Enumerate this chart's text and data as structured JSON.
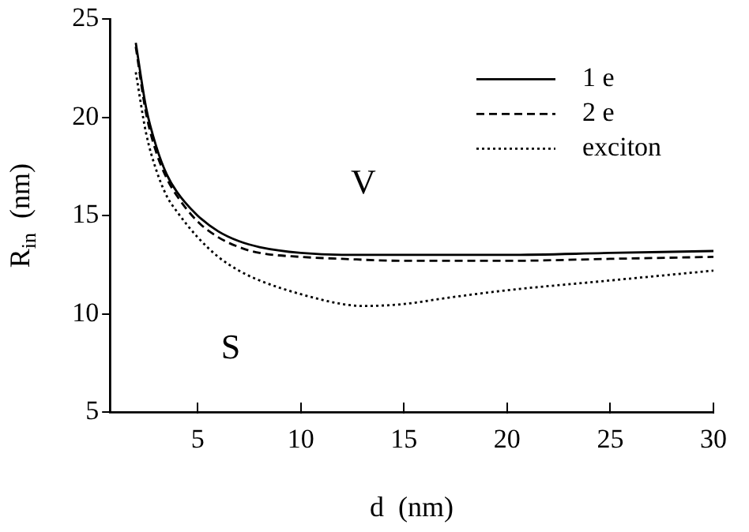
{
  "chart_data": {
    "type": "line",
    "xlabel": "d  (nm)",
    "ylabel": "R$_{in}$  (nm)",
    "xlim": [
      0.75,
      30
    ],
    "xticks": [
      5,
      10,
      15,
      20,
      25,
      30
    ],
    "ylim": [
      5,
      25
    ],
    "yticks": [
      5,
      10,
      15,
      20,
      25
    ],
    "grid": false,
    "legend": "top right",
    "marker": "none",
    "annotations": [
      "V",
      "S"
    ],
    "series": [
      {
        "name": "1 e",
        "color": "#000000",
        "line_style": "solid",
        "x": [
          2,
          2.5,
          3,
          3.5,
          4,
          5,
          6,
          7,
          8,
          10,
          12,
          15,
          20,
          25,
          30
        ],
        "values": [
          23.8,
          20.5,
          18.5,
          17.1,
          16.2,
          15.0,
          14.2,
          13.7,
          13.4,
          13.1,
          13.0,
          13.0,
          13.0,
          13.1,
          13.2
        ]
      },
      {
        "name": "2 e",
        "color": "#000000",
        "line_style": "dashed",
        "x": [
          2,
          2.5,
          3,
          3.5,
          4,
          5,
          6,
          7,
          8,
          10,
          12,
          15,
          20,
          25,
          30
        ],
        "values": [
          23.6,
          20.2,
          18.2,
          16.9,
          16.0,
          14.7,
          13.9,
          13.4,
          13.1,
          12.9,
          12.8,
          12.7,
          12.7,
          12.8,
          12.9
        ]
      },
      {
        "name": "exciton",
        "color": "#000000",
        "line_style": "dotted",
        "x": [
          2,
          2.5,
          3,
          3.5,
          4,
          5,
          6,
          7,
          8,
          10,
          12,
          13,
          15,
          17,
          20,
          25,
          30
        ],
        "values": [
          22.3,
          19.2,
          17.3,
          16.0,
          15.2,
          13.9,
          12.9,
          12.2,
          11.7,
          11.0,
          10.5,
          10.4,
          10.5,
          10.8,
          11.2,
          11.7,
          12.2
        ]
      }
    ]
  }
}
